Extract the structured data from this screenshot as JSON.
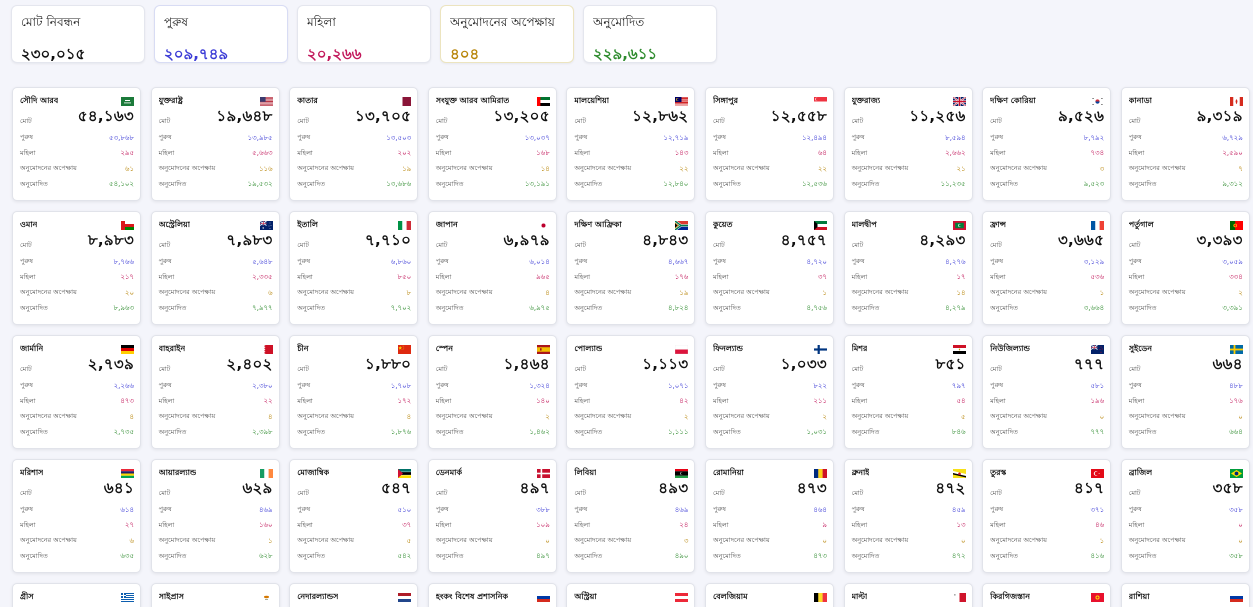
{
  "summary": {
    "total": {
      "label": "মোট নিবন্ধন",
      "value": "২৩০,০১৫"
    },
    "male": {
      "label": "পুরুষ",
      "value": "২০৯,৭৪৯"
    },
    "female": {
      "label": "মহিলা",
      "value": "২০,২৬৬"
    },
    "pending": {
      "label": "অনুমোদনের অপেক্ষায়",
      "value": "৪০৪"
    },
    "approved": {
      "label": "অনুমোদিত",
      "value": "২২৯,৬১১"
    }
  },
  "labels": {
    "total": "মোট",
    "male": "পুরুষ",
    "female": "মহিলা",
    "pending": "অনুমোদনের অপেক্ষায়",
    "approved": "অনুমোদিত"
  },
  "colors": {
    "male": "#3b3bd6",
    "female": "#c2185b",
    "pending": "#b8860b",
    "approved": "#2e8b2e"
  },
  "countries": [
    {
      "name": "সৌদি আরব",
      "flag": "sa",
      "total": "৫৪,১৬৩",
      "male": "৫৩,৮৬৮",
      "female": "২৯৫",
      "pending": "৬১",
      "approved": "৫৪,১০২"
    },
    {
      "name": "যুক্তরাষ্ট্র",
      "flag": "us",
      "total": "১৯,৬৪৮",
      "male": "১৩,৯৮৫",
      "female": "৫,৬৬৩",
      "pending": "১১৬",
      "approved": "১৯,৫৩২"
    },
    {
      "name": "কাতার",
      "flag": "qa",
      "total": "১৩,৭০৫",
      "male": "১৩,৫০৩",
      "female": "২০২",
      "pending": "১৯",
      "approved": "১৩,৬৮৬"
    },
    {
      "name": "সংযুক্ত আরব আমিরাত",
      "flag": "ae",
      "total": "১৩,২০৫",
      "male": "১৩,০৩৭",
      "female": "১৬৮",
      "pending": "১৪",
      "approved": "১৩,১৯১"
    },
    {
      "name": "মালয়েশিয়া",
      "flag": "my",
      "total": "১২,৮৬২",
      "male": "১২,৭১৯",
      "female": "১৪৩",
      "pending": "২২",
      "approved": "১২,৮৪০"
    },
    {
      "name": "সিঙ্গাপুর",
      "flag": "sg",
      "total": "১২,৫৫৮",
      "male": "১২,৪৯৪",
      "female": "৬৪",
      "pending": "২২",
      "approved": "১২,৫৩৬"
    },
    {
      "name": "যুক্তরাজ্য",
      "flag": "gb",
      "total": "১১,২৫৬",
      "male": "৮,৫৯৪",
      "female": "২,৬৬২",
      "pending": "২১",
      "approved": "১১,২৩৫"
    },
    {
      "name": "দক্ষিণ কোরিয়া",
      "flag": "kr",
      "total": "৯,৫২৬",
      "male": "৮,৭৯২",
      "female": "৭৩৪",
      "pending": "৩",
      "approved": "৯,৫২৩"
    },
    {
      "name": "কানাডা",
      "flag": "ca",
      "total": "৯,৩১৯",
      "male": "৬,৭২৯",
      "female": "২,৫৯০",
      "pending": "৭",
      "approved": "৯,৩১২"
    },
    {
      "name": "ওমান",
      "flag": "om",
      "total": "৮,৯৮৩",
      "male": "৮,৭৬৬",
      "female": "২১৭",
      "pending": "২০",
      "approved": "৮,৯৬৩"
    },
    {
      "name": "অস্ট্রেলিয়া",
      "flag": "au",
      "total": "৭,৯৮৩",
      "male": "৫,৬৪৮",
      "female": "২,৩৩৫",
      "pending": "৬",
      "approved": "৭,৯৭৭"
    },
    {
      "name": "ইতালি",
      "flag": "it",
      "total": "৭,৭১০",
      "male": "৬,৮৬০",
      "female": "৮৫০",
      "pending": "৮",
      "approved": "৭,৭০২"
    },
    {
      "name": "জাপান",
      "flag": "jp",
      "total": "৬,৯৭৯",
      "male": "৬,০১৪",
      "female": "৯৬৫",
      "pending": "৪",
      "approved": "৬,৯৭৫"
    },
    {
      "name": "দক্ষিণ আফ্রিকা",
      "flag": "za",
      "total": "৪,৮৪৩",
      "male": "৪,৬৬৭",
      "female": "১৭৬",
      "pending": "১৯",
      "approved": "৪,৮২৪"
    },
    {
      "name": "কুয়েত",
      "flag": "kw",
      "total": "৪,৭৫৭",
      "male": "৪,৭২০",
      "female": "৩৭",
      "pending": "১",
      "approved": "৪,৭৫৬"
    },
    {
      "name": "মালদ্বীপ",
      "flag": "mv",
      "total": "৪,২৯৩",
      "male": "৪,২৭৬",
      "female": "১৭",
      "pending": "১৪",
      "approved": "৪,২৭৯"
    },
    {
      "name": "ফ্রান্স",
      "flag": "fr",
      "total": "৩,৬৬৫",
      "male": "৩,১২৯",
      "female": "৫৩৬",
      "pending": "১",
      "approved": "৩,৬৬৪"
    },
    {
      "name": "পর্তুগাল",
      "flag": "pt",
      "total": "৩,৩৯৩",
      "male": "৩,০৫৯",
      "female": "৩৩৪",
      "pending": "২",
      "approved": "৩,৩৯১"
    },
    {
      "name": "জার্মানি",
      "flag": "de",
      "total": "২,৭৩৯",
      "male": "২,২৬৬",
      "female": "৪৭৩",
      "pending": "৪",
      "approved": "২,৭৩৫"
    },
    {
      "name": "বাহরাইন",
      "flag": "bh",
      "total": "২,৪০২",
      "male": "২,৩৮০",
      "female": "২২",
      "pending": "৪",
      "approved": "২,৩৯৮"
    },
    {
      "name": "চীন",
      "flag": "cn",
      "total": "১,৮৮০",
      "male": "১,৭০৮",
      "female": "১৭২",
      "pending": "৪",
      "approved": "১,৮৭৬"
    },
    {
      "name": "স্পেন",
      "flag": "es",
      "total": "১,৪৬৪",
      "male": "১,৩২৪",
      "female": "১৪০",
      "pending": "২",
      "approved": "১,৪৬২"
    },
    {
      "name": "পোল্যান্ড",
      "flag": "pl",
      "total": "১,১১৩",
      "male": "১,০৭১",
      "female": "৪২",
      "pending": "২",
      "approved": "১,১১১"
    },
    {
      "name": "ফিনল্যান্ড",
      "flag": "fi",
      "total": "১,০৩৩",
      "male": "৮২২",
      "female": "২১১",
      "pending": "২",
      "approved": "১,০৩১"
    },
    {
      "name": "মিশর",
      "flag": "eg",
      "total": "৮৫১",
      "male": "৭৯৭",
      "female": "৫৪",
      "pending": "৫",
      "approved": "৮৪৬"
    },
    {
      "name": "নিউজিল্যান্ড",
      "flag": "nz",
      "total": "৭৭৭",
      "male": "৫৮১",
      "female": "১৯৬",
      "pending": "০",
      "approved": "৭৭৭"
    },
    {
      "name": "সুইডেন",
      "flag": "se",
      "total": "৬৬৪",
      "male": "৪৮৮",
      "female": "১৭৬",
      "pending": "০",
      "approved": "৬৬৪"
    },
    {
      "name": "মরিশাস",
      "flag": "mu",
      "total": "৬৪১",
      "male": "৬১৪",
      "female": "২৭",
      "pending": "৬",
      "approved": "৬৩৫"
    },
    {
      "name": "আয়ারল্যান্ড",
      "flag": "ie",
      "total": "৬২৯",
      "male": "৪৬৯",
      "female": "১৬০",
      "pending": "১",
      "approved": "৬২৮"
    },
    {
      "name": "মোজাম্বিক",
      "flag": "mz",
      "total": "৫৪৭",
      "male": "৫১০",
      "female": "৩৭",
      "pending": "৫",
      "approved": "৫৪২"
    },
    {
      "name": "ডেনমার্ক",
      "flag": "dk",
      "total": "৪৯৭",
      "male": "৩৮৮",
      "female": "১০৯",
      "pending": "০",
      "approved": "৪৯৭"
    },
    {
      "name": "লিবিয়া",
      "flag": "ly",
      "total": "৪৯৩",
      "male": "৪৬৯",
      "female": "২৪",
      "pending": "৩",
      "approved": "৪৯০"
    },
    {
      "name": "রোমানিয়া",
      "flag": "ro",
      "total": "৪৭৩",
      "male": "৪৬৪",
      "female": "৯",
      "pending": "০",
      "approved": "৪৭৩"
    },
    {
      "name": "ব্রুনাই",
      "flag": "bn",
      "total": "৪৭২",
      "male": "৪৫৯",
      "female": "১৩",
      "pending": "০",
      "approved": "৪৭২"
    },
    {
      "name": "তুরস্ক",
      "flag": "tr",
      "total": "৪১৭",
      "male": "৩৭১",
      "female": "৪৬",
      "pending": "১",
      "approved": "৪১৬"
    },
    {
      "name": "ব্রাজিল",
      "flag": "br",
      "total": "৩৫৮",
      "male": "৩৫৮",
      "female": "০",
      "pending": "০",
      "approved": "৩৫৮"
    }
  ],
  "partial_countries": [
    {
      "name": "গ্রীস",
      "flag": "gr"
    },
    {
      "name": "সাইপ্রাস",
      "flag": "cy"
    },
    {
      "name": "নেদারল্যান্ডস",
      "flag": "nl"
    },
    {
      "name": "হংকং বিশেষ প্রশাসনিক",
      "flag": "ru"
    },
    {
      "name": "অস্ট্রিয়া",
      "flag": "at"
    },
    {
      "name": "বেলজিয়াম",
      "flag": "be"
    },
    {
      "name": "মাল্টা",
      "flag": "mt"
    },
    {
      "name": "কিরগিজস্তান",
      "flag": "kg"
    },
    {
      "name": "রাশিয়া",
      "flag": "ru"
    }
  ]
}
